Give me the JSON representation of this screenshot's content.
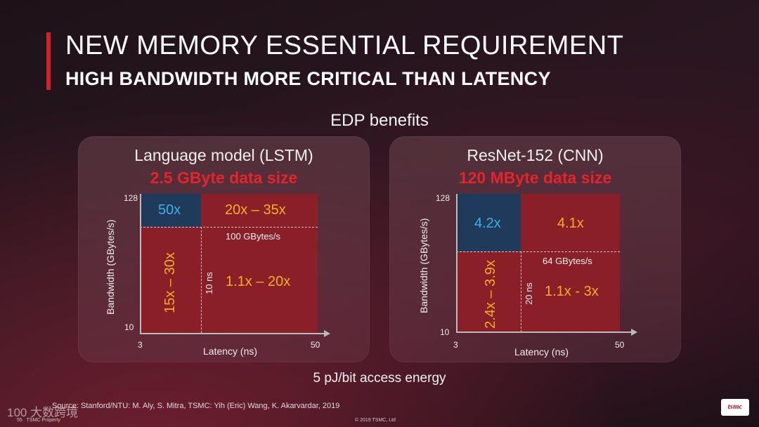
{
  "title": "NEW MEMORY ESSENTIAL REQUIREMENT",
  "subtitle": "HIGH BANDWIDTH MORE CRITICAL THAN LATENCY",
  "section_title": "EDP benefits",
  "panels": [
    {
      "model": "Language model (LSTM)",
      "data_size": "2.5 GByte data size",
      "ylabel": "Bandwidth (GBytes/s)",
      "xlabel": "Latency (ns)",
      "y_tick_top": "128",
      "y_tick_bottom": "10",
      "x_tick_left": "3",
      "x_tick_right": "50",
      "quadrants": {
        "high_bw_low_latency": "50x",
        "high_bw_high_latency": "20x – 35x",
        "low_bw_low_latency": "15x – 30x",
        "low_bw_high_latency": "1.1x – 20x"
      },
      "bw_threshold": "100 GBytes/s",
      "latency_threshold": "10 ns"
    },
    {
      "model": "ResNet-152 (CNN)",
      "data_size": "120 MByte data size",
      "ylabel": "Bandwidth (GBytes/s)",
      "xlabel": "Latency (ns)",
      "y_tick_top": "128",
      "y_tick_bottom": "10",
      "x_tick_left": "3",
      "x_tick_right": "50",
      "quadrants": {
        "high_bw_low_latency": "4.2x",
        "high_bw_high_latency": "4.1x",
        "low_bw_low_latency": "2.4x – 3.9x",
        "low_bw_high_latency": "1.1x  - 3x"
      },
      "bw_threshold": "64 GBytes/s",
      "latency_threshold": "20 ns"
    }
  ],
  "energy_note": "5 pJ/bit access energy",
  "source": "Source: Stanford/NTU: M. Aly, S. Mitra, TSMC: Yih (Eric) Wang, K. Akarvardar, 2019",
  "footer": {
    "page_number": "55",
    "property": "TSMC Property",
    "copyright": "© 2019 TSMC, Ltd",
    "watermark": "100 大数跨境",
    "logo_text": "tsmc"
  },
  "colors": {
    "accent": "#d22030",
    "quadrant_red": "#8a1f27",
    "quadrant_blue": "#203a5c",
    "value_gold": "#f0b020",
    "value_cyan": "#3ab0e8",
    "data_size_red": "#e8222a"
  }
}
